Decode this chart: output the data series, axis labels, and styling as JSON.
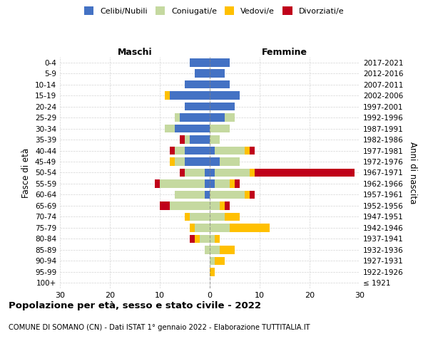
{
  "age_groups": [
    "100+",
    "95-99",
    "90-94",
    "85-89",
    "80-84",
    "75-79",
    "70-74",
    "65-69",
    "60-64",
    "55-59",
    "50-54",
    "45-49",
    "40-44",
    "35-39",
    "30-34",
    "25-29",
    "20-24",
    "15-19",
    "10-14",
    "5-9",
    "0-4"
  ],
  "birth_years": [
    "≤ 1921",
    "1922-1926",
    "1927-1931",
    "1932-1936",
    "1937-1941",
    "1942-1946",
    "1947-1951",
    "1952-1956",
    "1957-1961",
    "1962-1966",
    "1967-1971",
    "1972-1976",
    "1977-1981",
    "1982-1986",
    "1987-1991",
    "1992-1996",
    "1997-2001",
    "2002-2006",
    "2007-2011",
    "2012-2016",
    "2017-2021"
  ],
  "males": {
    "celibi": [
      0,
      0,
      0,
      0,
      0,
      0,
      0,
      0,
      1,
      1,
      1,
      5,
      5,
      4,
      7,
      6,
      5,
      8,
      5,
      3,
      4
    ],
    "coniugati": [
      0,
      0,
      0,
      1,
      2,
      3,
      4,
      8,
      6,
      9,
      4,
      2,
      2,
      1,
      2,
      1,
      0,
      0,
      0,
      0,
      0
    ],
    "vedovi": [
      0,
      0,
      0,
      0,
      1,
      1,
      1,
      0,
      0,
      0,
      0,
      1,
      0,
      0,
      0,
      0,
      0,
      1,
      0,
      0,
      0
    ],
    "divorziati": [
      0,
      0,
      0,
      0,
      1,
      0,
      0,
      2,
      0,
      1,
      1,
      0,
      1,
      1,
      0,
      0,
      0,
      0,
      0,
      0,
      0
    ]
  },
  "females": {
    "nubili": [
      0,
      0,
      0,
      0,
      0,
      0,
      0,
      0,
      0,
      1,
      1,
      2,
      1,
      0,
      0,
      3,
      5,
      6,
      4,
      3,
      4
    ],
    "coniugate": [
      0,
      0,
      1,
      2,
      1,
      4,
      3,
      2,
      7,
      3,
      7,
      4,
      6,
      2,
      4,
      2,
      0,
      0,
      0,
      0,
      0
    ],
    "vedove": [
      0,
      1,
      2,
      3,
      1,
      8,
      3,
      1,
      1,
      1,
      1,
      0,
      1,
      0,
      0,
      0,
      0,
      0,
      0,
      0,
      0
    ],
    "divorziate": [
      0,
      0,
      0,
      0,
      0,
      0,
      0,
      1,
      1,
      1,
      20,
      0,
      1,
      0,
      0,
      0,
      0,
      0,
      0,
      0,
      0
    ]
  },
  "colors": {
    "celibi": "#4472c4",
    "coniugati": "#c5d9a0",
    "vedovi": "#ffc000",
    "divorziati": "#c0001a"
  },
  "xlim": 30,
  "title": "Popolazione per età, sesso e stato civile - 2022",
  "subtitle": "COMUNE DI SOMANO (CN) - Dati ISTAT 1° gennaio 2022 - Elaborazione TUTTITALIA.IT",
  "ylabel_left": "Fasce di età",
  "ylabel_right": "Anni di nascita",
  "xlabel_left": "Maschi",
  "xlabel_right": "Femmine"
}
